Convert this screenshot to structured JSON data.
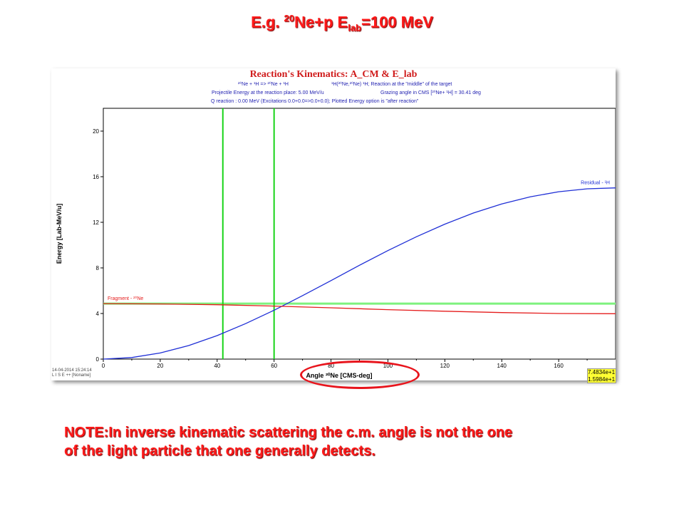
{
  "slide": {
    "title": {
      "prefix": "E.g. ",
      "sup": "20",
      "mid": "Ne+p E",
      "sub": "lab",
      "suffix": "=100 MeV"
    },
    "note_line1": "NOTE:In inverse kinematic scattering the c.m. angle is not the one",
    "note_line2": "of the light particle that one generally detects."
  },
  "panel": {
    "heading": "Reaction's Kinematics:  A_CM  & E_lab",
    "info": {
      "line1_reaction": "²⁰Ne + ¹H => ²⁰Ne + ¹H",
      "line1_notation": "¹H(²⁰Ne,²⁰Ne) ¹H;  Reaction at the \"middle\" of the target",
      "line2_energy": "Projectile Energy at the reaction place:  5.00 MeV/u",
      "line2_grazing": "Grazing angle in CMS [²⁰Ne+ ¹H] = 30.41 deg",
      "line3": "Q reaction : 0.00 MeV  (Excitations 0.0+0.0=>0.0+0.0);   Plotted Energy option is \"after reaction\""
    },
    "timestamp": "14-04-2014  15:24:14",
    "software": "L I S E ++   [Noname]",
    "readout": [
      "7.4834e+1",
      "1.5984e+1"
    ]
  },
  "chart_data": {
    "type": "line",
    "xlabel": "Angle ²⁰Ne [CMS-deg]",
    "ylabel": "Energy [Lab-MeV/u]",
    "xlim": [
      0,
      180
    ],
    "ylim": [
      0,
      22
    ],
    "xticks": [
      0,
      20,
      40,
      60,
      80,
      100,
      120,
      140,
      160
    ],
    "yticks": [
      0,
      4,
      8,
      12,
      16,
      20
    ],
    "grid": false,
    "series": [
      {
        "name": "Residual - ¹H",
        "color": "#1f2fd6",
        "x": [
          0,
          10,
          20,
          30,
          40,
          50,
          60,
          70,
          80,
          90,
          100,
          110,
          120,
          130,
          140,
          150,
          160,
          170,
          180
        ],
        "y": [
          0.0,
          0.14,
          0.54,
          1.19,
          2.06,
          3.11,
          4.29,
          5.57,
          6.89,
          8.23,
          9.52,
          10.73,
          11.84,
          12.81,
          13.61,
          14.24,
          14.68,
          14.94,
          15.02
        ]
      },
      {
        "name": "Fragment - ²⁰Ne",
        "color": "#e51c1c",
        "x": [
          0,
          20,
          40,
          60,
          80,
          100,
          120,
          140,
          160,
          180
        ],
        "y": [
          4.87,
          4.84,
          4.77,
          4.65,
          4.5,
          4.34,
          4.2,
          4.08,
          4.0,
          3.98
        ]
      }
    ],
    "vertical_markers": [
      {
        "x": 42,
        "color": "#18d418"
      },
      {
        "x": 60,
        "color": "#18d418"
      }
    ],
    "horizontal_markers": [
      {
        "y": 4.87,
        "color": "#7ef27e"
      }
    ]
  },
  "colors": {
    "accent_red": "#ff1a1a",
    "heading_red": "#d01c1c",
    "info_blue": "#1f1fb0",
    "highlight_oval": "#e8141c",
    "readout_bg": "#ffff33"
  }
}
